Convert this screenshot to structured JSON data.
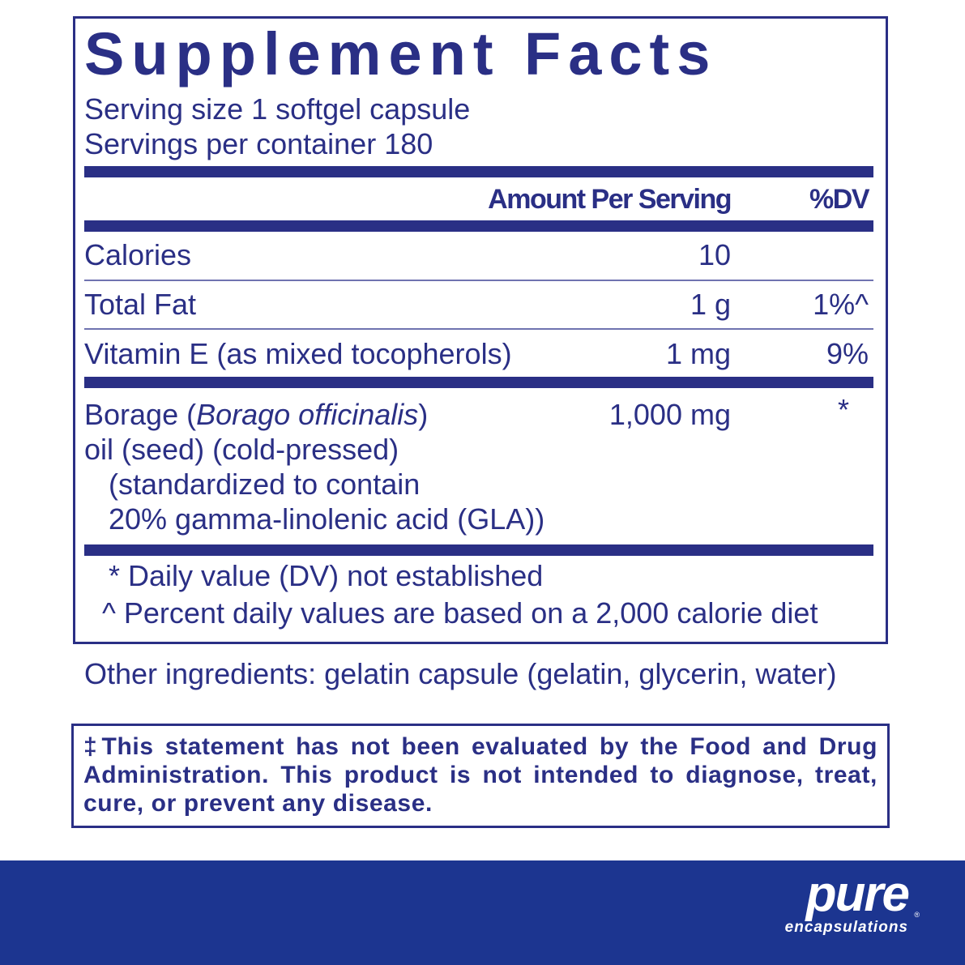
{
  "title": "Supplement Facts",
  "serving_size": "Serving size  1 softgel capsule",
  "servings_per_container": "Servings per container  180",
  "header": {
    "amount": "Amount Per Serving",
    "dv": "%DV"
  },
  "rows": [
    {
      "name": "Calories",
      "amount": "10",
      "dv": ""
    },
    {
      "name": "Total Fat",
      "amount": "1 g",
      "dv": "1%^"
    },
    {
      "name": "Vitamin E (as mixed tocopherols)",
      "amount": "1 mg",
      "dv": "9%"
    }
  ],
  "borage": {
    "name_prefix": "Borage (",
    "latin": "Borago officinalis",
    "name_suffix": ")",
    "line2": "oil (seed) (cold-pressed)",
    "line3": "(standardized to contain",
    "line4": "20% gamma-linolenic acid (GLA))",
    "amount": "1,000 mg",
    "dv": "*"
  },
  "footnotes": [
    "* Daily value (DV) not established",
    "^ Percent daily values are based on a 2,000 calorie diet"
  ],
  "other_ingredients": "Other ingredients:  gelatin capsule (gelatin, glycerin, water)",
  "disclaimer": "‡This statement has not been evaluated by the Food and Drug Administration. This product is not intended to diagnose, treat, cure, or prevent any disease.",
  "brand": {
    "name": "pure",
    "sub": "encapsulations",
    "registered": "®"
  },
  "colors": {
    "text": "#2a2f85",
    "banner": "#1c3590"
  }
}
